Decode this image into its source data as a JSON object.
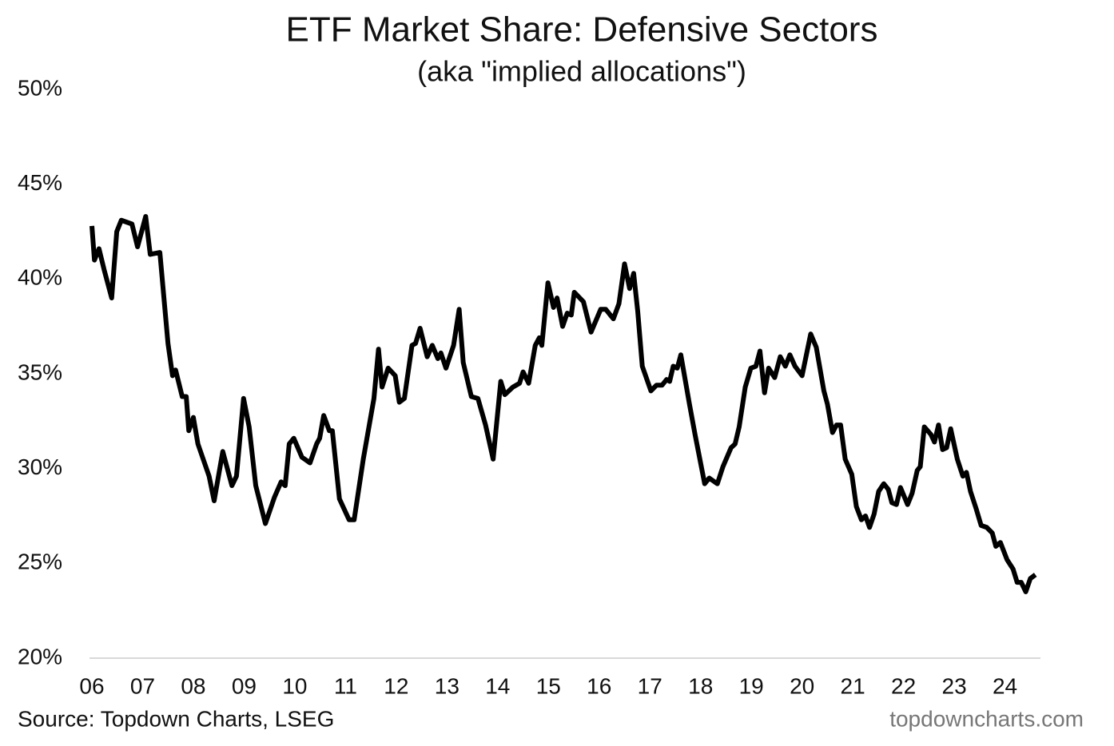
{
  "chart_data": {
    "type": "line",
    "title": "ETF Market Share: Defensive Sectors",
    "subtitle": "(aka \"implied allocations\")",
    "source": "Source: Topdown Charts, LSEG",
    "watermark": "topdowncharts.com",
    "xlim": [
      2006,
      2024.7
    ],
    "xticks": [
      {
        "value": 2006,
        "label": "06"
      },
      {
        "value": 2007,
        "label": "07"
      },
      {
        "value": 2008,
        "label": "08"
      },
      {
        "value": 2009,
        "label": "09"
      },
      {
        "value": 2010,
        "label": "10"
      },
      {
        "value": 2011,
        "label": "11"
      },
      {
        "value": 2012,
        "label": "12"
      },
      {
        "value": 2013,
        "label": "13"
      },
      {
        "value": 2014,
        "label": "14"
      },
      {
        "value": 2015,
        "label": "15"
      },
      {
        "value": 2016,
        "label": "16"
      },
      {
        "value": 2017,
        "label": "17"
      },
      {
        "value": 2018,
        "label": "18"
      },
      {
        "value": 2019,
        "label": "19"
      },
      {
        "value": 2020,
        "label": "20"
      },
      {
        "value": 2021,
        "label": "21"
      },
      {
        "value": 2022,
        "label": "22"
      },
      {
        "value": 2023,
        "label": "23"
      },
      {
        "value": 2024,
        "label": "24"
      }
    ],
    "ylim": [
      20,
      50
    ],
    "yticks": [
      {
        "value": 20,
        "label": "20%"
      },
      {
        "value": 25,
        "label": "25%"
      },
      {
        "value": 30,
        "label": "30%"
      },
      {
        "value": 35,
        "label": "35%"
      },
      {
        "value": 40,
        "label": "40%"
      },
      {
        "value": 45,
        "label": "45%"
      },
      {
        "value": 50,
        "label": "50%"
      }
    ],
    "grid": false,
    "color": "#000000",
    "x": [
      2006.0,
      2006.05,
      2006.14,
      2006.24,
      2006.39,
      2006.49,
      2006.58,
      2006.79,
      2006.9,
      2007.06,
      2007.15,
      2007.34,
      2007.5,
      2007.59,
      2007.65,
      2007.78,
      2007.86,
      2007.91,
      2008.0,
      2008.09,
      2008.31,
      2008.41,
      2008.58,
      2008.76,
      2008.85,
      2008.99,
      2009.1,
      2009.23,
      2009.42,
      2009.6,
      2009.73,
      2009.81,
      2009.89,
      2009.98,
      2010.14,
      2010.3,
      2010.43,
      2010.49,
      2010.57,
      2010.68,
      2010.74,
      2010.88,
      2011.07,
      2011.17,
      2011.35,
      2011.56,
      2011.65,
      2011.72,
      2011.84,
      2011.98,
      2012.06,
      2012.16,
      2012.31,
      2012.38,
      2012.47,
      2012.61,
      2012.71,
      2012.82,
      2012.88,
      2012.98,
      2013.13,
      2013.24,
      2013.32,
      2013.48,
      2013.61,
      2013.76,
      2013.91,
      2014.06,
      2014.14,
      2014.3,
      2014.43,
      2014.5,
      2014.61,
      2014.74,
      2014.82,
      2014.87,
      2014.99,
      2015.1,
      2015.17,
      2015.28,
      2015.37,
      2015.45,
      2015.51,
      2015.69,
      2015.84,
      2016.03,
      2016.13,
      2016.28,
      2016.39,
      2016.5,
      2016.6,
      2016.68,
      2016.76,
      2016.85,
      2017.02,
      2017.13,
      2017.24,
      2017.33,
      2017.39,
      2017.46,
      2017.54,
      2017.61,
      2017.78,
      2017.89,
      2018.08,
      2018.17,
      2018.33,
      2018.44,
      2018.6,
      2018.68,
      2018.76,
      2018.88,
      2018.99,
      2019.09,
      2019.17,
      2019.26,
      2019.34,
      2019.46,
      2019.57,
      2019.67,
      2019.76,
      2019.86,
      2020.0,
      2020.17,
      2020.28,
      2020.43,
      2020.5,
      2020.6,
      2020.68,
      2020.76,
      2020.85,
      2020.98,
      2021.07,
      2021.17,
      2021.25,
      2021.33,
      2021.42,
      2021.51,
      2021.61,
      2021.7,
      2021.77,
      2021.86,
      2021.94,
      2022.08,
      2022.17,
      2022.27,
      2022.33,
      2022.41,
      2022.54,
      2022.61,
      2022.69,
      2022.77,
      2022.85,
      2022.93,
      2023.06,
      2023.17,
      2023.24,
      2023.32,
      2023.43,
      2023.53,
      2023.64,
      2023.75,
      2023.82,
      2023.91,
      2024.04,
      2024.16,
      2024.24,
      2024.32,
      2024.41,
      2024.5,
      2024.6
    ],
    "values": [
      42.8,
      41.0,
      41.6,
      40.5,
      39.0,
      42.5,
      43.1,
      42.9,
      41.7,
      43.3,
      41.3,
      41.4,
      36.6,
      34.9,
      35.2,
      33.8,
      33.8,
      32.0,
      32.7,
      31.3,
      29.6,
      28.3,
      30.9,
      29.1,
      29.6,
      33.7,
      32.2,
      29.1,
      27.1,
      28.5,
      29.3,
      29.1,
      31.3,
      31.6,
      30.6,
      30.3,
      31.3,
      31.6,
      32.8,
      32.0,
      32.0,
      28.4,
      27.3,
      27.3,
      30.5,
      33.7,
      36.3,
      34.3,
      35.3,
      34.9,
      33.5,
      33.7,
      36.5,
      36.6,
      37.4,
      35.9,
      36.5,
      35.8,
      36.1,
      35.3,
      36.5,
      38.4,
      35.6,
      33.8,
      33.7,
      32.3,
      30.5,
      34.6,
      33.9,
      34.3,
      34.5,
      35.1,
      34.5,
      36.5,
      36.9,
      36.5,
      39.8,
      38.5,
      39.0,
      37.5,
      38.2,
      38.1,
      39.3,
      38.8,
      37.2,
      38.4,
      38.4,
      37.9,
      38.7,
      40.8,
      39.5,
      40.3,
      38.3,
      35.4,
      34.1,
      34.4,
      34.4,
      34.7,
      34.6,
      35.4,
      35.3,
      36.0,
      33.4,
      31.8,
      29.2,
      29.5,
      29.2,
      30.1,
      31.1,
      31.3,
      32.2,
      34.3,
      35.3,
      35.4,
      36.2,
      34.0,
      35.3,
      34.8,
      35.9,
      35.4,
      36.0,
      35.4,
      34.9,
      37.1,
      36.4,
      34.1,
      33.4,
      31.9,
      32.3,
      32.3,
      30.5,
      29.7,
      28.0,
      27.3,
      27.5,
      26.9,
      27.6,
      28.8,
      29.2,
      28.9,
      28.2,
      28.1,
      29.0,
      28.1,
      28.7,
      29.9,
      30.1,
      32.2,
      31.8,
      31.4,
      32.3,
      31.0,
      31.1,
      32.1,
      30.5,
      29.6,
      29.8,
      28.8,
      27.9,
      27.0,
      26.9,
      26.6,
      25.9,
      26.1,
      25.2,
      24.7,
      24.0,
      24.0,
      23.5,
      24.2,
      24.4
    ]
  }
}
